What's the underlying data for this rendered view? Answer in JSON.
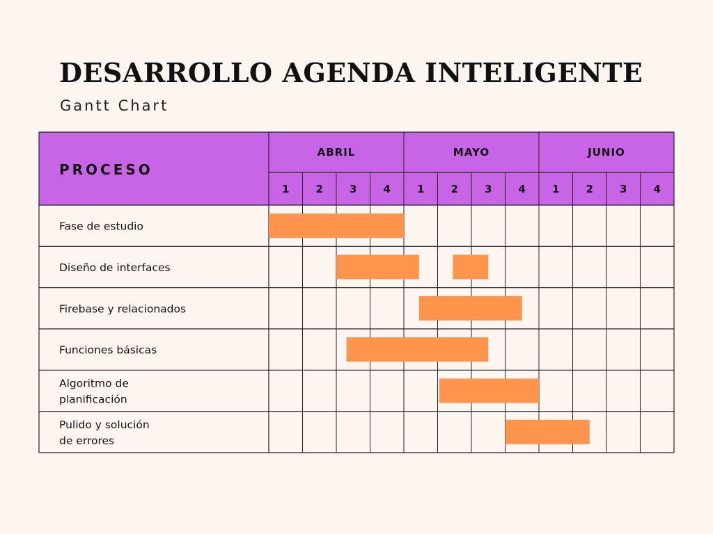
{
  "header": {
    "title": "DESARROLLO AGENDA INTELIGENTE",
    "subtitle": "Gantt Chart"
  },
  "colors": {
    "background": "#fdf6f0",
    "header_fill": "#c765e6",
    "bar_fill": "#ff944d",
    "grid_line": "#222222"
  },
  "chart_data": {
    "type": "gantt",
    "row_header": "PROCESO",
    "months": [
      {
        "label": "ABRIL",
        "weeks": [
          "1",
          "2",
          "3",
          "4"
        ]
      },
      {
        "label": "MAYO",
        "weeks": [
          "1",
          "2",
          "3",
          "4"
        ]
      },
      {
        "label": "JUNIO",
        "weeks": [
          "1",
          "2",
          "3",
          "4"
        ]
      }
    ],
    "unit": "week index from start of ABRIL (0-12)",
    "tasks": [
      {
        "name": "Fase de estudio",
        "bars": [
          {
            "start": 0,
            "end": 4
          }
        ]
      },
      {
        "name": "Diseño de interfaces",
        "bars": [
          {
            "start": 2,
            "end": 4.45
          },
          {
            "start": 5.45,
            "end": 6.5
          }
        ]
      },
      {
        "name": "Firebase y relacionados",
        "bars": [
          {
            "start": 4.45,
            "end": 7.5
          }
        ]
      },
      {
        "name": "Funciones básicas",
        "bars": [
          {
            "start": 2.3,
            "end": 6.5
          }
        ]
      },
      {
        "name": "Algoritmo de planificación",
        "bars": [
          {
            "start": 5.05,
            "end": 8
          }
        ]
      },
      {
        "name": "Pulido y solución de errores",
        "bars": [
          {
            "start": 7,
            "end": 9.5
          }
        ]
      }
    ]
  }
}
